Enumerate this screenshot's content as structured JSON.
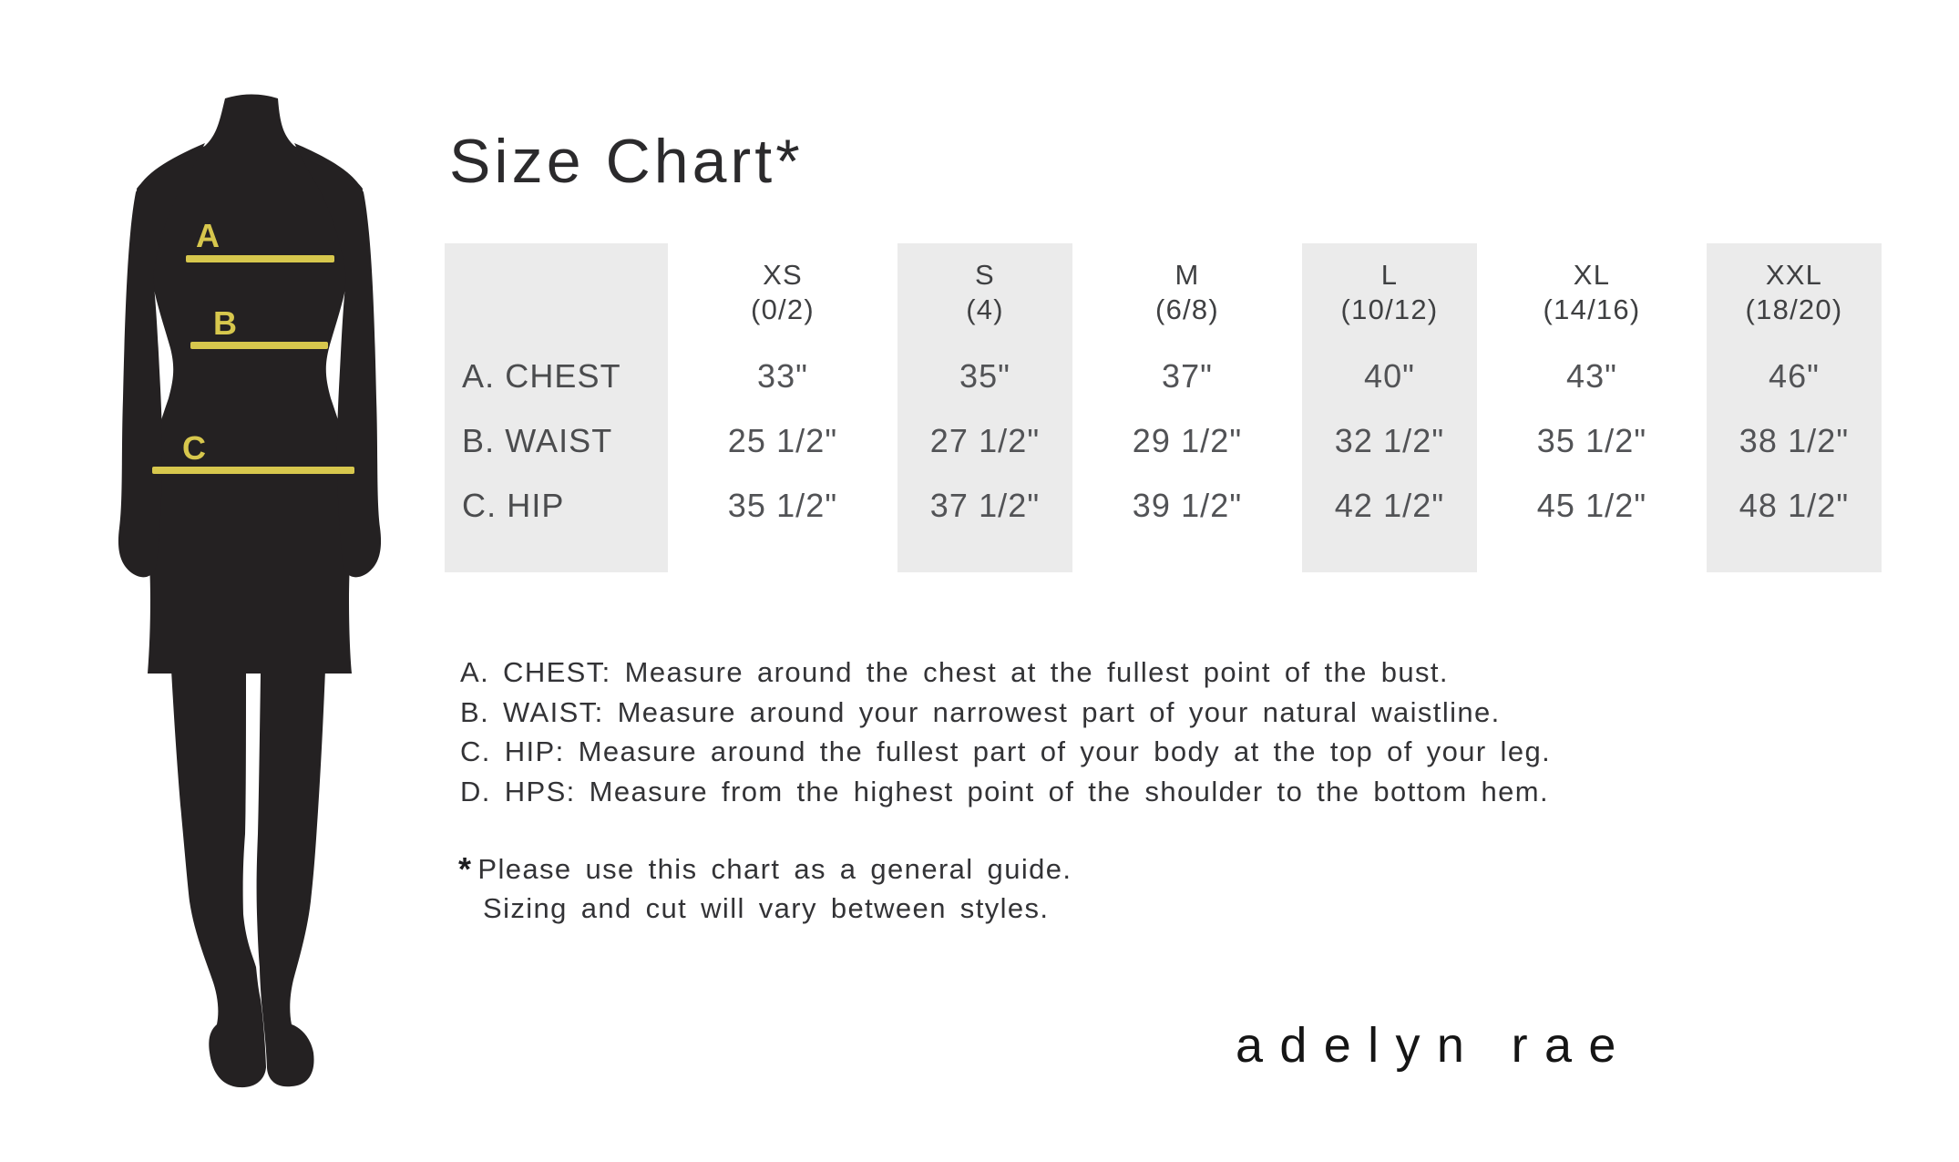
{
  "title": "Size Chart*",
  "brand": "adelyn rae",
  "figure": {
    "description": "black female mannequin silhouette with measurement lines",
    "silhouette_color": "#242122",
    "line_color": "#d7c74d",
    "measure_labels": {
      "chest": "A",
      "waist": "B",
      "hip": "C"
    }
  },
  "table": {
    "sizes": [
      {
        "label": "XS",
        "range": "(0/2)"
      },
      {
        "label": "S",
        "range": "(4)"
      },
      {
        "label": "M",
        "range": "(6/8)"
      },
      {
        "label": "L",
        "range": "(10/12)"
      },
      {
        "label": "XL",
        "range": "(14/16)"
      },
      {
        "label": "XXL",
        "range": "(18/20)"
      }
    ],
    "rows": [
      {
        "label": "A. CHEST",
        "values": [
          "33\"",
          "35\"",
          "37\"",
          "40\"",
          "43\"",
          "46\""
        ]
      },
      {
        "label": "B. WAIST",
        "values": [
          "25 1/2\"",
          "27 1/2\"",
          "29 1/2\"",
          "32 1/2\"",
          "35 1/2\"",
          "38 1/2\""
        ]
      },
      {
        "label": "C. HIP",
        "values": [
          "35 1/2\"",
          "37 1/2\"",
          "39 1/2\"",
          "42 1/2\"",
          "45 1/2\"",
          "48 1/2\""
        ]
      }
    ],
    "shaded_columns": [
      "row-labels",
      "S",
      "L",
      "XXL"
    ],
    "shade_color": "#ebebeb"
  },
  "instructions": [
    "A. CHEST: Measure around the chest at the fullest point of the bust.",
    "B. WAIST: Measure around your narrowest part of your natural waistline.",
    "C. HIP: Measure around the fullest part of your body at the top of your leg.",
    "D. HPS: Measure from the highest point of the shoulder to the bottom hem."
  ],
  "footnote": {
    "marker": "*",
    "line1": "Please use this chart as a general guide.",
    "line2": "Sizing and cut will vary between styles."
  }
}
